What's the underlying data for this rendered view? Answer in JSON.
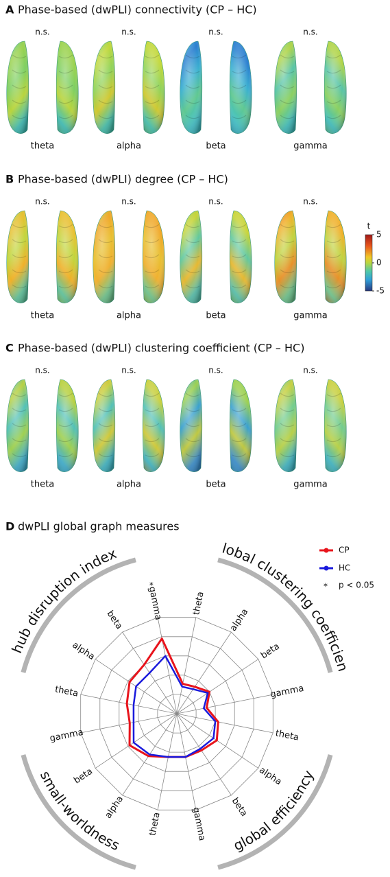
{
  "panels": [
    {
      "label": "A",
      "title": "Phase-based (dwPLI) connectivity (CP – HC)",
      "significance": [
        "n.s.",
        "n.s.",
        "n.s.",
        "n.s."
      ],
      "bands": [
        "theta",
        "alpha",
        "beta",
        "gamma"
      ]
    },
    {
      "label": "B",
      "title": "Phase-based (dwPLI) degree (CP – HC)",
      "significance": [
        "n.s.",
        "n.s.",
        "n.s.",
        "n.s."
      ],
      "bands": [
        "theta",
        "alpha",
        "beta",
        "gamma"
      ]
    },
    {
      "label": "C",
      "title": "Phase-based (dwPLI) clustering coefficient (CP – HC)",
      "significance": [
        "n.s.",
        "n.s.",
        "n.s.",
        "n.s."
      ],
      "bands": [
        "theta",
        "alpha",
        "beta",
        "gamma"
      ]
    }
  ],
  "colorbar": {
    "label": "t",
    "lim": [
      -5,
      5
    ],
    "ticks": [
      5,
      0,
      -5
    ]
  },
  "chart_data": {
    "type": "radar",
    "label": "D",
    "title": "dwPLI global graph measures",
    "groups": [
      {
        "name": "global clustering coefficient",
        "bands": [
          "theta",
          "alpha",
          "beta",
          "gamma"
        ]
      },
      {
        "name": "global efficiency",
        "bands": [
          "theta",
          "alpha",
          "beta",
          "gamma"
        ]
      },
      {
        "name": "small-worldness",
        "bands": [
          "theta",
          "alpha",
          "beta",
          "gamma"
        ]
      },
      {
        "name": "hub disruption index",
        "bands": [
          "theta",
          "alpha",
          "beta",
          "gamma"
        ]
      }
    ],
    "series": [
      {
        "name": "CP",
        "color": "#e8141c",
        "values": [
          0.31,
          0.33,
          0.4,
          0.31,
          0.43,
          0.49,
          0.45,
          0.45,
          0.45,
          0.52,
          0.58,
          0.49,
          0.52,
          0.58,
          0.6,
          0.78
        ]
      },
      {
        "name": "HC",
        "color": "#1a1adc",
        "values": [
          0.28,
          0.3,
          0.38,
          0.28,
          0.4,
          0.45,
          0.43,
          0.45,
          0.45,
          0.5,
          0.53,
          0.45,
          0.45,
          0.5,
          0.5,
          0.6
        ]
      }
    ],
    "rlim": [
      0,
      1
    ],
    "rticks": [
      0.2,
      0.4,
      0.6,
      0.8,
      1.0
    ],
    "significance_marker": "*",
    "significant_group": 3,
    "significant_band": 3,
    "significance_note": "p < 0.05"
  }
}
